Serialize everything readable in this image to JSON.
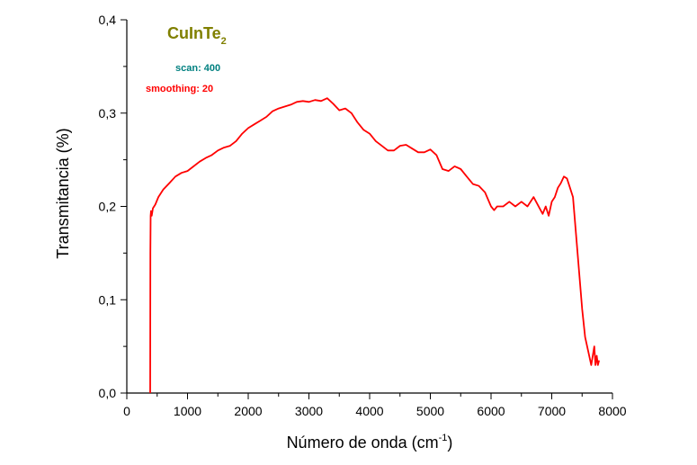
{
  "chart_data": {
    "type": "line",
    "xlabel": "Número de onda (cm",
    "xlabel_sup": "-1",
    "xlabel_end": ")",
    "ylabel": "Transmitancia (%)",
    "xlim": [
      0,
      8000
    ],
    "ylim": [
      0.0,
      0.4
    ],
    "x_ticks": [
      0,
      1000,
      2000,
      3000,
      4000,
      5000,
      6000,
      7000,
      8000
    ],
    "x_tick_labels": [
      "0",
      "1000",
      "2000",
      "3000",
      "4000",
      "5000",
      "6000",
      "7000",
      "8000"
    ],
    "y_ticks": [
      0.0,
      0.1,
      0.2,
      0.3,
      0.4
    ],
    "y_tick_labels": [
      "0,0",
      "0,1",
      "0,2",
      "0,3",
      "0,4"
    ],
    "grid": false,
    "annotations": {
      "compound": "CuInTe",
      "compound_sub": "2",
      "compound_color": "#808000",
      "scan": "scan: 400",
      "scan_color": "#008080",
      "smoothing": "smoothing: 20",
      "smoothing_color": "#ff0000"
    },
    "series": [
      {
        "color": "#ff0000",
        "x": [
          385,
          388,
          392,
          398,
          410,
          430,
          470,
          520,
          600,
          700,
          800,
          900,
          1000,
          1100,
          1200,
          1300,
          1400,
          1500,
          1600,
          1700,
          1800,
          1900,
          2000,
          2100,
          2200,
          2300,
          2400,
          2500,
          2600,
          2700,
          2800,
          2900,
          3000,
          3100,
          3200,
          3300,
          3400,
          3500,
          3600,
          3700,
          3800,
          3900,
          4000,
          4100,
          4200,
          4300,
          4400,
          4500,
          4600,
          4700,
          4800,
          4900,
          5000,
          5100,
          5200,
          5300,
          5400,
          5500,
          5600,
          5700,
          5800,
          5900,
          6000,
          6050,
          6100,
          6200,
          6300,
          6400,
          6500,
          6600,
          6700,
          6800,
          6850,
          6900,
          6950,
          7000,
          7050,
          7100,
          7150,
          7200,
          7250,
          7300,
          7350,
          7400,
          7450,
          7500,
          7550,
          7600,
          7650,
          7700,
          7720,
          7740,
          7760,
          7780
        ],
        "y": [
          0.0,
          0.15,
          0.19,
          0.195,
          0.19,
          0.198,
          0.202,
          0.21,
          0.218,
          0.225,
          0.232,
          0.236,
          0.238,
          0.243,
          0.248,
          0.252,
          0.255,
          0.26,
          0.263,
          0.265,
          0.27,
          0.278,
          0.284,
          0.288,
          0.292,
          0.296,
          0.302,
          0.305,
          0.307,
          0.309,
          0.312,
          0.313,
          0.312,
          0.314,
          0.313,
          0.316,
          0.31,
          0.303,
          0.305,
          0.3,
          0.29,
          0.282,
          0.278,
          0.27,
          0.265,
          0.26,
          0.26,
          0.265,
          0.266,
          0.262,
          0.258,
          0.258,
          0.261,
          0.255,
          0.24,
          0.238,
          0.243,
          0.24,
          0.232,
          0.224,
          0.222,
          0.215,
          0.2,
          0.196,
          0.2,
          0.2,
          0.205,
          0.2,
          0.205,
          0.2,
          0.21,
          0.198,
          0.192,
          0.2,
          0.19,
          0.205,
          0.21,
          0.22,
          0.225,
          0.232,
          0.23,
          0.22,
          0.21,
          0.17,
          0.13,
          0.09,
          0.06,
          0.045,
          0.03,
          0.05,
          0.03,
          0.04,
          0.03,
          0.035
        ]
      }
    ]
  }
}
